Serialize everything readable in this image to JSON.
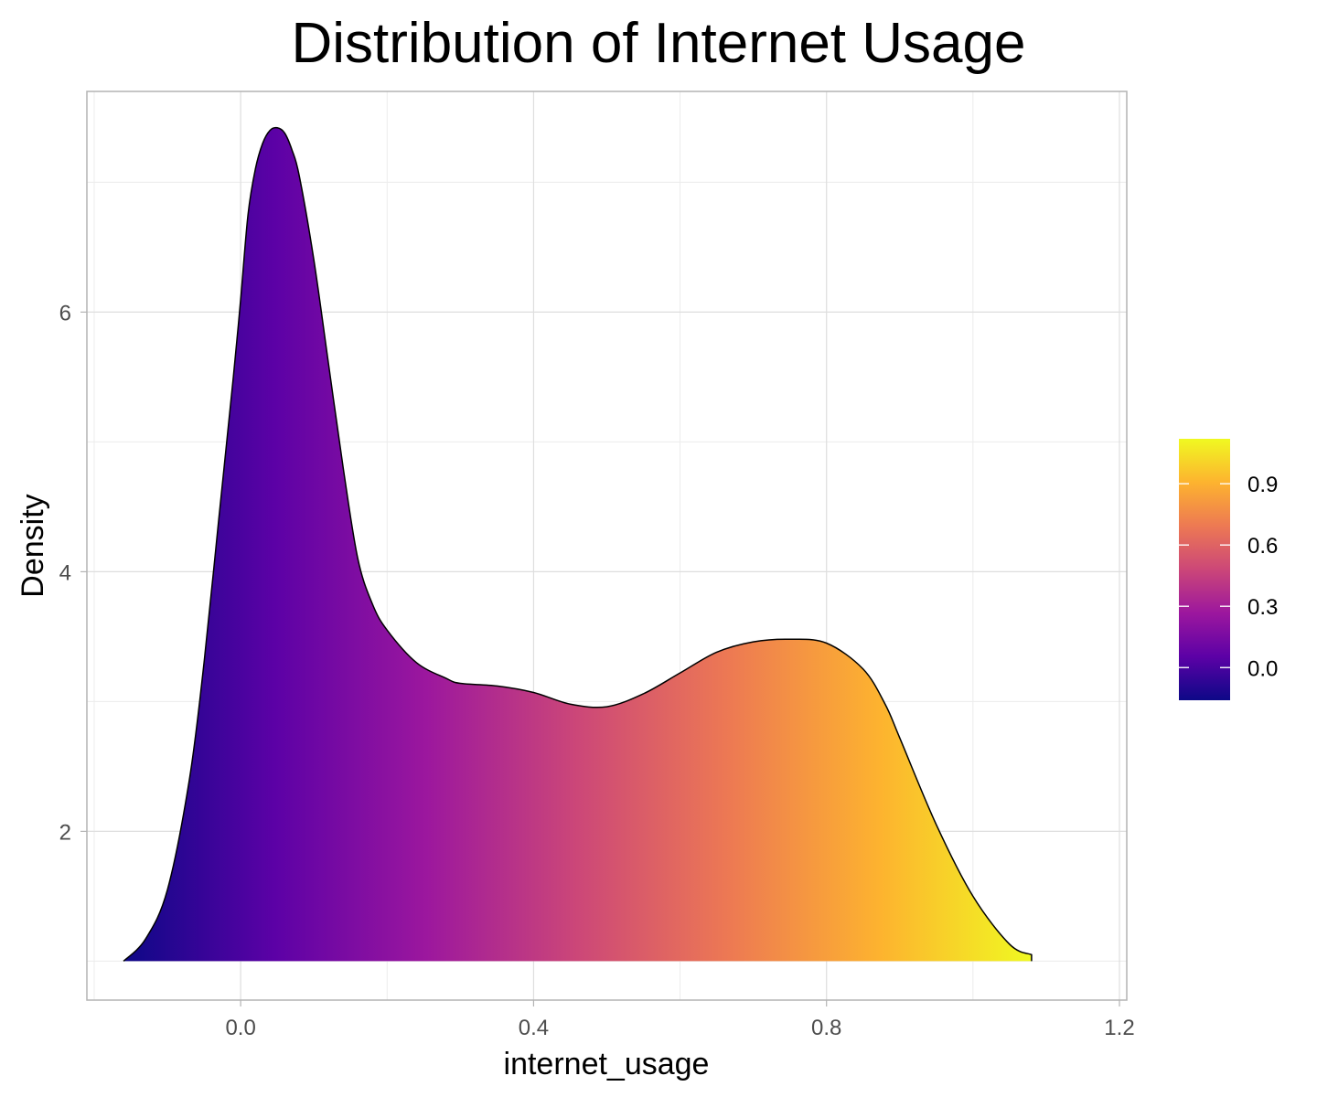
{
  "chart_data": {
    "type": "area",
    "subtype": "density",
    "title": "Distribution of Internet Usage",
    "xlabel": "internet_usage",
    "ylabel": "Density",
    "xlim": [
      -0.21,
      1.21
    ],
    "ylim": [
      0.7,
      7.7
    ],
    "x_ticks": [
      0.0,
      0.4,
      0.8,
      1.2
    ],
    "x_tick_labels": [
      "0.0",
      "0.4",
      "0.8",
      "1.2"
    ],
    "y_ticks": [
      2,
      4,
      6
    ],
    "y_tick_labels": [
      "2",
      "4",
      "6"
    ],
    "baseline": 1.0,
    "grid": true,
    "fill": "gradient by x (plasma)",
    "x": [
      -0.16,
      -0.13,
      -0.1,
      -0.07,
      -0.05,
      -0.03,
      -0.01,
      0.0,
      0.01,
      0.02,
      0.03,
      0.04,
      0.05,
      0.06,
      0.07,
      0.08,
      0.1,
      0.12,
      0.14,
      0.16,
      0.18,
      0.2,
      0.24,
      0.28,
      0.3,
      0.35,
      0.4,
      0.45,
      0.5,
      0.55,
      0.6,
      0.65,
      0.7,
      0.75,
      0.8,
      0.85,
      0.88,
      0.9,
      0.95,
      1.0,
      1.05,
      1.08
    ],
    "y": [
      1.0,
      1.17,
      1.55,
      2.4,
      3.3,
      4.4,
      5.5,
      6.1,
      6.75,
      7.1,
      7.3,
      7.4,
      7.42,
      7.38,
      7.25,
      7.05,
      6.4,
      5.6,
      4.8,
      4.1,
      3.75,
      3.55,
      3.3,
      3.18,
      3.14,
      3.12,
      3.07,
      2.98,
      2.96,
      3.06,
      3.22,
      3.38,
      3.46,
      3.48,
      3.45,
      3.25,
      2.98,
      2.72,
      2.05,
      1.5,
      1.13,
      1.05
    ],
    "legend": {
      "position": "right",
      "ticks": [
        0.0,
        0.3,
        0.6,
        0.9
      ],
      "tick_labels": [
        "0.0",
        "0.3",
        "0.6",
        "0.9"
      ],
      "range": [
        -0.16,
        1.12
      ]
    },
    "colors": {
      "plasma": [
        "#0d0887",
        "#5c01a6",
        "#9c179e",
        "#cc4778",
        "#ed7953",
        "#fdb32f",
        "#f0f921"
      ],
      "grid": "#dedede",
      "border": "#b3b3b3"
    }
  }
}
